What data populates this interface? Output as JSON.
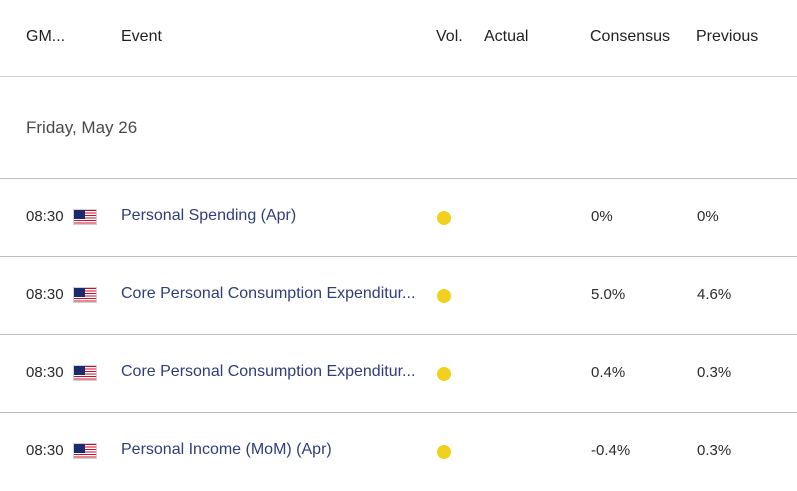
{
  "header": {
    "gmt": "GM...",
    "event": "Event",
    "vol": "Vol.",
    "actual": "Actual",
    "consensus": "Consensus",
    "previous": "Previous"
  },
  "date_label": "Friday, May 26",
  "colors": {
    "event_text": "#2f3d7a",
    "volatility_dot": "#f2d01e",
    "divider": "#bdbdbd"
  },
  "rows": [
    {
      "time": "08:30",
      "flag_icon": "us-flag-icon",
      "event": "Personal Spending (Apr)",
      "actual": "",
      "consensus": "0%",
      "previous": "0%"
    },
    {
      "time": "08:30",
      "flag_icon": "us-flag-icon",
      "event": "Core Personal Consumption Expenditur...",
      "actual": "",
      "consensus": "5.0%",
      "previous": "4.6%"
    },
    {
      "time": "08:30",
      "flag_icon": "us-flag-icon",
      "event": "Core Personal Consumption Expenditur...",
      "actual": "",
      "consensus": "0.4%",
      "previous": "0.3%"
    },
    {
      "time": "08:30",
      "flag_icon": "us-flag-icon",
      "event": "Personal Income (MoM) (Apr)",
      "actual": "",
      "consensus": "-0.4%",
      "previous": "0.3%"
    }
  ]
}
